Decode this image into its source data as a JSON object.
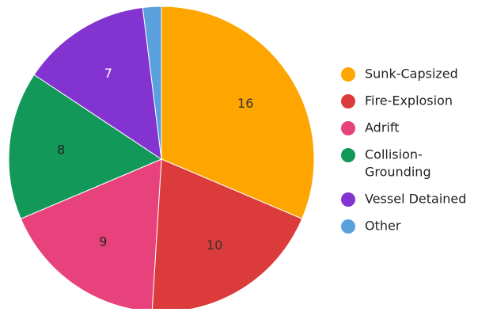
{
  "chart_data": {
    "type": "pie",
    "title": "",
    "categories": [
      "Sunk-Capsized",
      "Fire-Explosion",
      "Adrift",
      "Collision-Grounding",
      "Vessel Detained",
      "Other"
    ],
    "values": [
      16,
      10,
      9,
      8,
      7,
      1
    ],
    "data_labels": [
      "16",
      "10",
      "9",
      "8",
      "7",
      ""
    ],
    "colors": [
      "#ffa500",
      "#dc3b3b",
      "#e8427c",
      "#12995a",
      "#8233d0",
      "#5aa0dd"
    ],
    "legend": {
      "position": "right",
      "items": [
        {
          "lines": [
            "Sunk-Capsized"
          ],
          "color": "#ffa500",
          "icon": "circle-marker"
        },
        {
          "lines": [
            "Fire-Explosion"
          ],
          "color": "#dc3b3b",
          "icon": "circle-marker"
        },
        {
          "lines": [
            "Adrift"
          ],
          "color": "#e8427c",
          "icon": "circle-marker"
        },
        {
          "lines": [
            "Collision-",
            "Grounding"
          ],
          "color": "#12995a",
          "icon": "circle-marker"
        },
        {
          "lines": [
            "Vessel Detained"
          ],
          "color": "#8233d0",
          "icon": "circle-marker"
        },
        {
          "lines": [
            "Other"
          ],
          "color": "#5aa0dd",
          "icon": "circle-marker"
        }
      ]
    }
  }
}
